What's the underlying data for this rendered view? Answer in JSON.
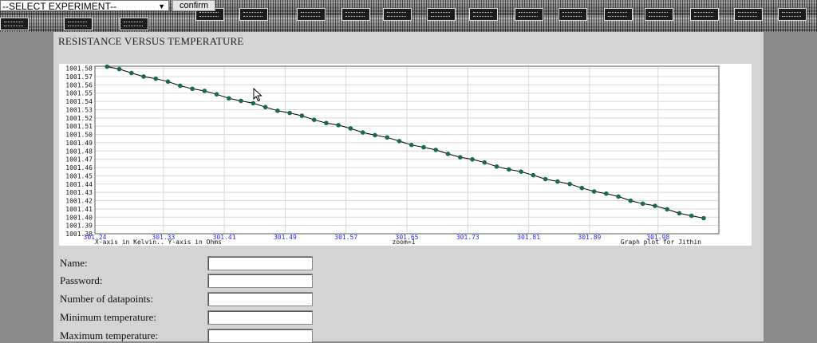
{
  "toolbar": {
    "experiment_select": "--SELECT EXPERIMENT--",
    "confirm_label": "confirm"
  },
  "page": {
    "title": "RESISTANCE VERSUS TEMPERATURE"
  },
  "chart_data": {
    "type": "line",
    "title": "",
    "x_ticks": [
      "301.24",
      "301.33",
      "301.41",
      "301.49",
      "301.57",
      "301.65",
      "301.73",
      "301.81",
      "301.89",
      "301.98"
    ],
    "y_ticks": [
      "1001.38",
      "1001.39",
      "1001.40",
      "1001.41",
      "1001.42",
      "1001.43",
      "1001.44",
      "1001.45",
      "1001.46",
      "1001.47",
      "1001.48",
      "1001.49",
      "1001.50",
      "1001.51",
      "1001.52",
      "1001.53",
      "1001.54",
      "1001.55",
      "1001.56",
      "1001.57",
      "1001.58"
    ],
    "xlim": [
      301.24,
      302.06
    ],
    "ylim": [
      1001.38,
      1001.5825
    ],
    "x_start": 301.256,
    "x_end": 302.04,
    "y_start": 1001.582,
    "y_end": 1001.398,
    "num_points": 50,
    "footer_left": "X-axis in Kelvin.. Y-axis in Ohms",
    "footer_center": "zoom=1",
    "footer_right": "Graph plot for Jithin",
    "grid": true,
    "line_color": "#000000",
    "point_color": "#1a6a4a"
  },
  "form": {
    "fields": [
      {
        "label": "Name:"
      },
      {
        "label": "Password:"
      },
      {
        "label": "Number of datapoints:"
      },
      {
        "label": "Minimum temperature:"
      },
      {
        "label": "Maximum temperature:"
      }
    ]
  }
}
